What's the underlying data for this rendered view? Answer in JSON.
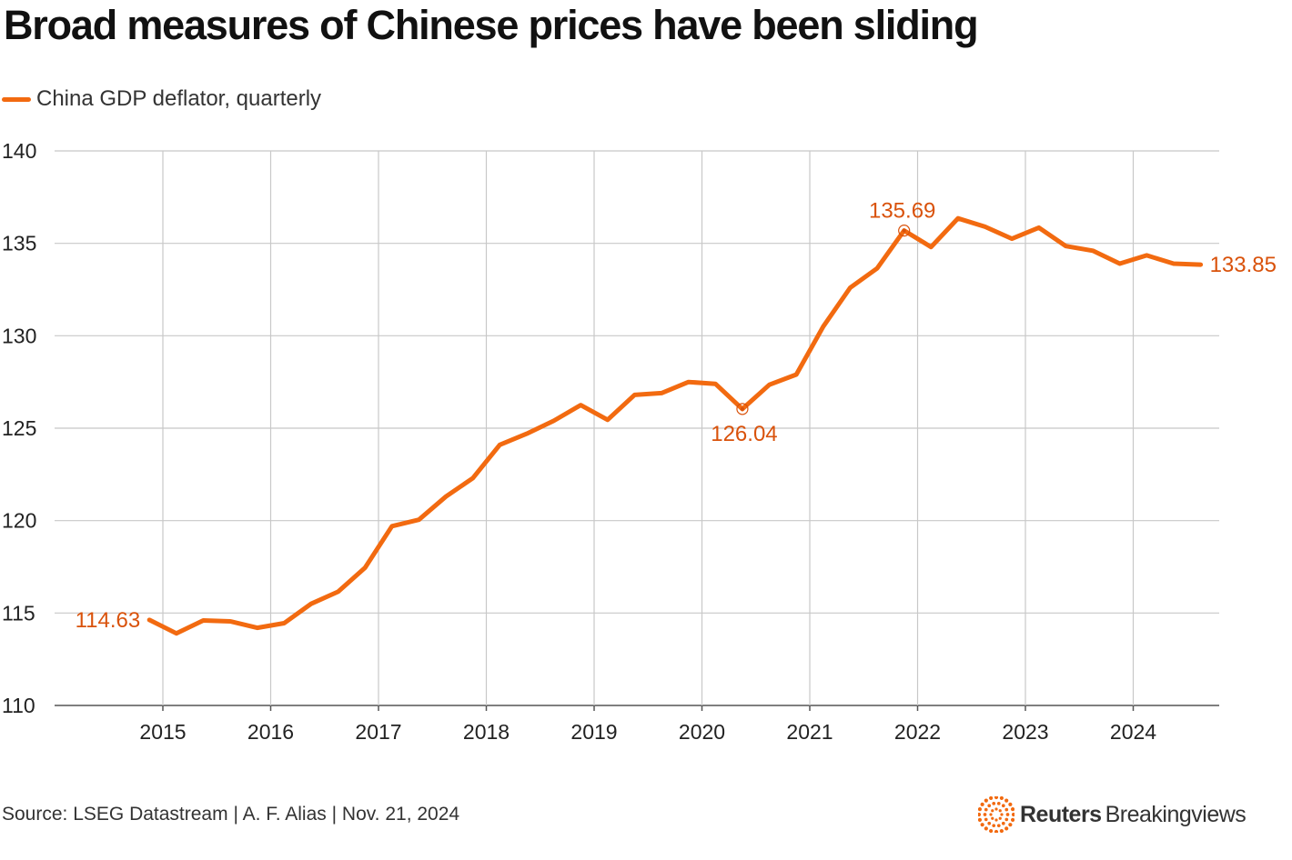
{
  "title": "Broad measures of Chinese prices have been sliding",
  "legend": {
    "label": "China GDP deflator, quarterly"
  },
  "source": "Source: LSEG Datastream | A. F. Alias | Nov. 21, 2024",
  "brand": {
    "name": "Reuters",
    "sub": "Breakingviews"
  },
  "colors": {
    "series": "#f26a10",
    "annotation": "#d9520b",
    "grid": "#c8c8c8",
    "axis": "#222222"
  },
  "chart_data": {
    "type": "line",
    "title": "Broad measures of Chinese prices have been sliding",
    "xlabel": "",
    "ylabel": "",
    "ylim": [
      110,
      140
    ],
    "yticks": [
      110,
      115,
      120,
      125,
      130,
      135,
      140
    ],
    "xticks": [
      2015,
      2016,
      2017,
      2018,
      2019,
      2020,
      2021,
      2022,
      2023,
      2024
    ],
    "grid": true,
    "legend_position": "top-left",
    "series": [
      {
        "name": "China GDP deflator, quarterly",
        "x": [
          2014.875,
          2015.125,
          2015.375,
          2015.625,
          2015.875,
          2016.125,
          2016.375,
          2016.625,
          2016.875,
          2017.125,
          2017.375,
          2017.625,
          2017.875,
          2018.125,
          2018.375,
          2018.625,
          2018.875,
          2019.125,
          2019.375,
          2019.625,
          2019.875,
          2020.125,
          2020.375,
          2020.625,
          2020.875,
          2021.125,
          2021.375,
          2021.625,
          2021.875,
          2022.125,
          2022.375,
          2022.625,
          2022.875,
          2023.125,
          2023.375,
          2023.625,
          2023.875,
          2024.125,
          2024.375,
          2024.625
        ],
        "values": [
          114.63,
          113.9,
          114.6,
          114.55,
          114.2,
          114.45,
          115.5,
          116.15,
          117.45,
          119.7,
          120.05,
          121.3,
          122.3,
          124.1,
          124.7,
          125.4,
          126.25,
          125.45,
          126.8,
          126.9,
          127.5,
          127.4,
          126.04,
          127.35,
          127.9,
          130.5,
          132.6,
          133.65,
          135.69,
          134.8,
          136.35,
          135.9,
          135.25,
          135.85,
          134.85,
          134.6,
          133.9,
          134.35,
          133.9,
          133.85
        ]
      }
    ],
    "annotations": [
      {
        "x": 2014.875,
        "value": 114.63,
        "label": "114.63",
        "placement": "left"
      },
      {
        "x": 2020.375,
        "value": 126.04,
        "label": "126.04",
        "placement": "below",
        "marker": true
      },
      {
        "x": 2021.875,
        "value": 135.69,
        "label": "135.69",
        "placement": "above",
        "marker": true
      },
      {
        "x": 2024.625,
        "value": 133.85,
        "label": "133.85",
        "placement": "right"
      }
    ]
  }
}
